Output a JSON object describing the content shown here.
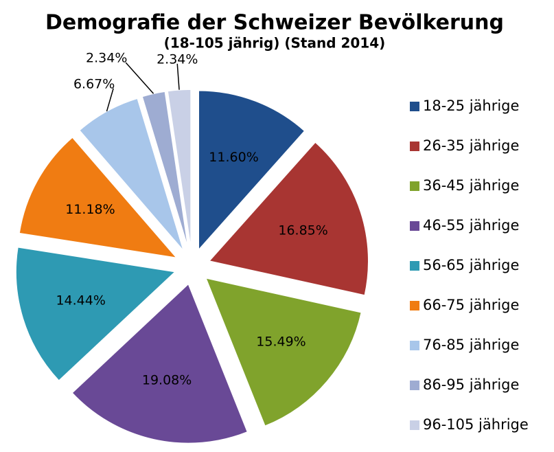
{
  "chart_data": {
    "type": "pie",
    "title": "Demografie der Schweizer Bevölkerung",
    "subtitle": "(18-105 jährig) (Stand 2014)",
    "categories": [
      "18-25 jährige",
      "26-35 jährige",
      "36-45 jährige",
      "46-55 jährige",
      "56-65 jährige",
      "66-75 jährige",
      "76-85 jährige",
      "86-95 jährige",
      "96-105 jährige"
    ],
    "values": [
      11.6,
      16.85,
      15.49,
      19.08,
      14.44,
      11.18,
      6.67,
      2.34,
      2.34
    ],
    "value_labels": [
      "11.60%",
      "16.85%",
      "15.49%",
      "19.08%",
      "14.44%",
      "11.18%",
      "6.67%",
      "2.34%",
      "2.34%"
    ],
    "colors": [
      "#1f4e8c",
      "#a83532",
      "#80a32c",
      "#694996",
      "#2e9ab3",
      "#f07c12",
      "#a8c6ea",
      "#9eacd2",
      "#c9d0e6"
    ],
    "legend": "right"
  }
}
